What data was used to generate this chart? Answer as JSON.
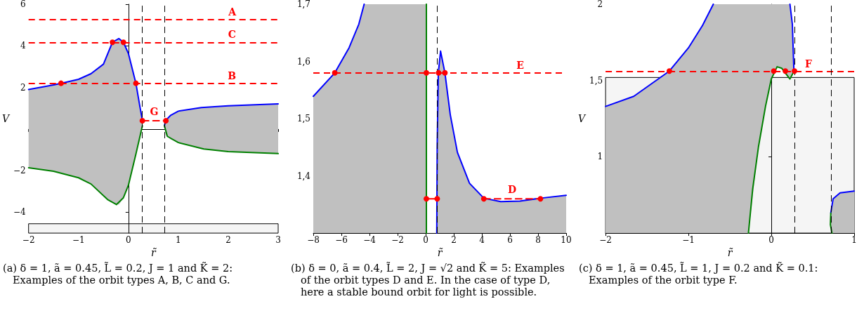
{
  "chart_data": [
    {
      "type": "line",
      "xlabel": "r̃",
      "ylabel": "V",
      "xlim": [
        -2,
        3
      ],
      "ylim": [
        -5,
        6
      ],
      "xticks": [
        -2,
        -1,
        0,
        1,
        2,
        3
      ],
      "yticks": [
        -4,
        -2,
        2,
        4,
        6
      ],
      "marker": "none",
      "series": [
        {
          "color": "#0000ff",
          "x": [
            -2,
            -1.5,
            -1.35,
            -1,
            -0.75,
            -0.5,
            -0.32,
            -0.19,
            -0.1,
            0,
            0.15,
            0.23,
            0.28
          ],
          "values": [
            1.9,
            2.12,
            2.2,
            2.39,
            2.66,
            3.12,
            4.17,
            4.35,
            4.17,
            3.63,
            2.2,
            1.08,
            0.42
          ],
          "upper": [
            1.9,
            2.12,
            2.2,
            2.39,
            2.66,
            3.12,
            4.17,
            4.35,
            4.17,
            3.63,
            2.2,
            1.08,
            0.42
          ],
          "lower": [
            -1.86,
            -2.03,
            -2.1,
            -2.34,
            -2.64,
            -3.2,
            -3.55,
            -3.63,
            -3.3,
            -2.7,
            -1.2,
            -0.5,
            0.16
          ]
        },
        {
          "color": "#008000",
          "x": [
            -2,
            -1.5,
            -1,
            -0.75,
            -0.41,
            -0.24,
            -0.1,
            0,
            0.15,
            0.28
          ],
          "values": [
            -1.86,
            -2.03,
            -2.34,
            -2.64,
            -3.4,
            -3.63,
            -3.3,
            -2.7,
            -1.2,
            0.16
          ]
        },
        {
          "color": "#0000ff",
          "x": [
            0.72,
            0.75,
            0.85,
            1,
            1.46,
            2,
            3
          ],
          "values": [
            0.16,
            0.42,
            0.67,
            0.86,
            1.03,
            1.12,
            1.21
          ],
          "upper": [
            0.16,
            0.42,
            0.67,
            0.86,
            1.03,
            1.12,
            1.21
          ],
          "lower": [
            0.16,
            -0.3,
            -0.5,
            -0.65,
            -0.96,
            -1.08,
            -1.18
          ]
        },
        {
          "color": "#008000",
          "x": [
            0.72,
            0.78,
            1,
            1.51,
            2,
            3
          ],
          "values": [
            0.16,
            -0.35,
            -0.65,
            -0.96,
            -1.08,
            -1.18
          ]
        },
        {
          "name": "G",
          "color": "#ff0000",
          "line_style": "dashed",
          "x": [
            0.28,
            0.75
          ],
          "values": [
            0.4,
            0.4
          ]
        },
        {
          "type": "scatter",
          "marker": "circle",
          "color": "#ff0000",
          "x": [
            -1.35,
            -0.32,
            -0.1,
            0.15,
            0.28,
            0.75
          ],
          "values": [
            2.2,
            4.17,
            4.17,
            2.2,
            0.4,
            0.4
          ]
        }
      ],
      "ref_lines": [
        {
          "axis": "y",
          "value": 5.27,
          "label": "A",
          "color": "#ff0000",
          "line_style": "dashed"
        },
        {
          "axis": "y",
          "value": 4.17,
          "label": "C",
          "color": "#ff0000",
          "line_style": "dashed"
        },
        {
          "axis": "y",
          "value": 2.2,
          "label": "B",
          "color": "#ff0000",
          "line_style": "dashed"
        },
        {
          "axis": "x",
          "value": 0.28,
          "color": "#000000",
          "line_style": "dashed"
        },
        {
          "axis": "x",
          "value": 0.72,
          "color": "#000000",
          "line_style": "dashed"
        }
      ],
      "bands": [
        {
          "axis": "y",
          "from": -5,
          "to": -4.55,
          "color": "#000000"
        }
      ],
      "annotations": [
        "(a) δ = 1, ã = 0.45, L̃ = 0.2, J = 1 and K̃ = 2: Examples of the orbit types A, B, C and G."
      ]
    },
    {
      "type": "line",
      "xlabel": "r̃",
      "xlim": [
        -8,
        10
      ],
      "ylim": [
        1.3,
        1.7
      ],
      "xticks": [
        -8,
        -6,
        -4,
        -2,
        0,
        2,
        4,
        6,
        8,
        10
      ],
      "yticks": [
        {
          "value": 1.3,
          "label": null
        },
        {
          "value": 1.4,
          "label": "1,4"
        },
        {
          "value": 1.5,
          "label": "1,5"
        },
        {
          "value": 1.6,
          "label": "1,6"
        },
        {
          "value": 1.7,
          "label": "1,7"
        }
      ],
      "marker": "none",
      "series": [
        {
          "color": "#0000ff",
          "x": [
            -8,
            -6.47,
            -5.45,
            -4.76,
            -4.38,
            0.05
          ],
          "values": [
            1.539,
            1.58,
            1.624,
            1.665,
            1.7,
            null
          ],
          "upper": [
            1.539,
            1.58,
            1.624,
            1.665,
            1.7,
            1.7
          ],
          "lower": [
            1.3,
            1.3,
            1.3,
            1.3,
            1.3,
            1.3
          ]
        },
        {
          "color": "#0000ff",
          "x": [
            0.79,
            0.82,
            0.9,
            1.06,
            1.37,
            1.75,
            2.26,
            3.12,
            4.14,
            5.34,
            6.71,
            8.17,
            10
          ],
          "values": [
            1.3,
            1.45,
            1.58,
            1.618,
            1.58,
            1.507,
            1.441,
            1.387,
            1.361,
            1.355,
            1.356,
            1.361,
            1.366
          ],
          "upper": [
            1.3,
            1.45,
            1.58,
            1.618,
            1.58,
            1.507,
            1.441,
            1.387,
            1.361,
            1.355,
            1.356,
            1.361,
            1.366
          ],
          "lower": [
            1.3,
            1.3,
            1.3,
            1.3,
            1.3,
            1.3,
            1.3,
            1.3,
            1.3,
            1.3,
            1.3,
            1.3,
            1.3
          ]
        },
        {
          "color": "#008000",
          "x": [
            0.05,
            0.05
          ],
          "values": [
            1.3,
            1.7
          ]
        },
        {
          "name": "D",
          "color": "#ff0000",
          "line_style": "dashed",
          "x": [
            4.14,
            8.17
          ],
          "values": [
            1.36,
            1.36
          ]
        },
        {
          "color": "#ff0000",
          "line_style": "solid",
          "x": [
            0.05,
            0.82
          ],
          "values": [
            1.36,
            1.36
          ]
        },
        {
          "type": "scatter",
          "marker": "circle",
          "color": "#ff0000",
          "x": [
            -6.47,
            0.05,
            0.92,
            1.37,
            0.05,
            0.82,
            4.14,
            8.17
          ],
          "values": [
            1.58,
            1.58,
            1.58,
            1.58,
            1.36,
            1.36,
            1.36,
            1.36
          ]
        }
      ],
      "ref_lines": [
        {
          "axis": "y",
          "value": 1.58,
          "label": "E",
          "color": "#ff0000",
          "line_style": "dashed"
        },
        {
          "axis": "x",
          "value": 0.79,
          "color": "#000000",
          "line_style": "dashed"
        }
      ],
      "annotations": [
        "(b) δ = 0, ã = 0.4, L̃ = 2, J = √2 and K̃ = 5: Examples of the orbit types D and E. In the case of type D, here a stable bound orbit for light is possible."
      ]
    },
    {
      "type": "line",
      "xlabel": "r̃",
      "ylabel": "V",
      "xlim": [
        -2,
        1
      ],
      "ylim": [
        0.5,
        2
      ],
      "xticks": [
        -2,
        -1,
        0,
        1
      ],
      "yticks": [
        1,
        {
          "value": 1.5,
          "label": "1,5"
        },
        2
      ],
      "marker": "none",
      "series": [
        {
          "color": "#0000ff",
          "x": [
            -2,
            -1.66,
            -1.23,
            -1,
            -0.83,
            -0.7,
            -0.276,
            -0.155,
            -0.07,
            0,
            0.07,
            0.127,
            0.225,
            0.254,
            0.273
          ],
          "values": [
            1.33,
            1.396,
            1.562,
            1.714,
            1.861,
            2,
            null,
            null,
            null,
            null,
            null,
            null,
            null,
            null,
            null
          ],
          "upper": [
            1.33,
            1.396,
            1.562,
            1.714,
            1.861,
            2,
            2,
            2,
            2,
            2,
            2,
            2,
            2,
            1.87,
            1.56
          ],
          "lower": [
            0.5,
            0.5,
            0.5,
            0.5,
            0.5,
            0.5,
            0.5,
            1.065,
            1.33,
            1.51,
            1.59,
            1.58,
            1.51,
            1.53,
            1.56
          ]
        },
        {
          "color": "#0000ff",
          "x": [
            0.225,
            0.254,
            0.273
          ],
          "values": [
            2,
            1.87,
            1.56
          ]
        },
        {
          "color": "#008000",
          "x": [
            -0.276,
            -0.225,
            -0.155,
            -0.07,
            0,
            0.07,
            0.127,
            0.225,
            0.273
          ],
          "values": [
            0.5,
            0.787,
            1.065,
            1.33,
            1.51,
            1.59,
            1.58,
            1.51,
            1.56
          ]
        },
        {
          "color": "#0000ff",
          "x": [
            0.718,
            0.746,
            0.83,
            1
          ],
          "values": [
            0.632,
            0.725,
            0.764,
            0.775
          ],
          "upper": [
            0.632,
            0.725,
            0.764,
            0.775
          ],
          "lower": [
            0.5,
            0.5,
            0.5,
            0.5
          ]
        },
        {
          "color": "#008000",
          "x": [
            0.718,
            0.713,
            0.732
          ],
          "values": [
            0.632,
            0.555,
            0.5
          ]
        },
        {
          "type": "scatter",
          "marker": "circle",
          "color": "#ff0000",
          "x": [
            -1.23,
            0.03,
            0.17,
            0.28
          ],
          "values": [
            1.562,
            1.562,
            1.562,
            1.562
          ]
        }
      ],
      "ref_lines": [
        {
          "axis": "y",
          "value": 1.562,
          "label": "F",
          "color": "#ff0000",
          "line_style": "dashed"
        },
        {
          "axis": "x",
          "value": 0.28,
          "color": "#000000",
          "line_style": "dashed"
        },
        {
          "axis": "x",
          "value": 0.718,
          "color": "#000000",
          "line_style": "dashed"
        }
      ],
      "bands": [
        {
          "axis": "y",
          "from": 0.5,
          "to": 1.52,
          "color": "#000000"
        }
      ],
      "annotations": [
        "(c) δ = 1, ã = 0.45, L̃ = 1, J = 0.2 and K̃ = 0.1: Examples of the orbit type F."
      ]
    }
  ]
}
